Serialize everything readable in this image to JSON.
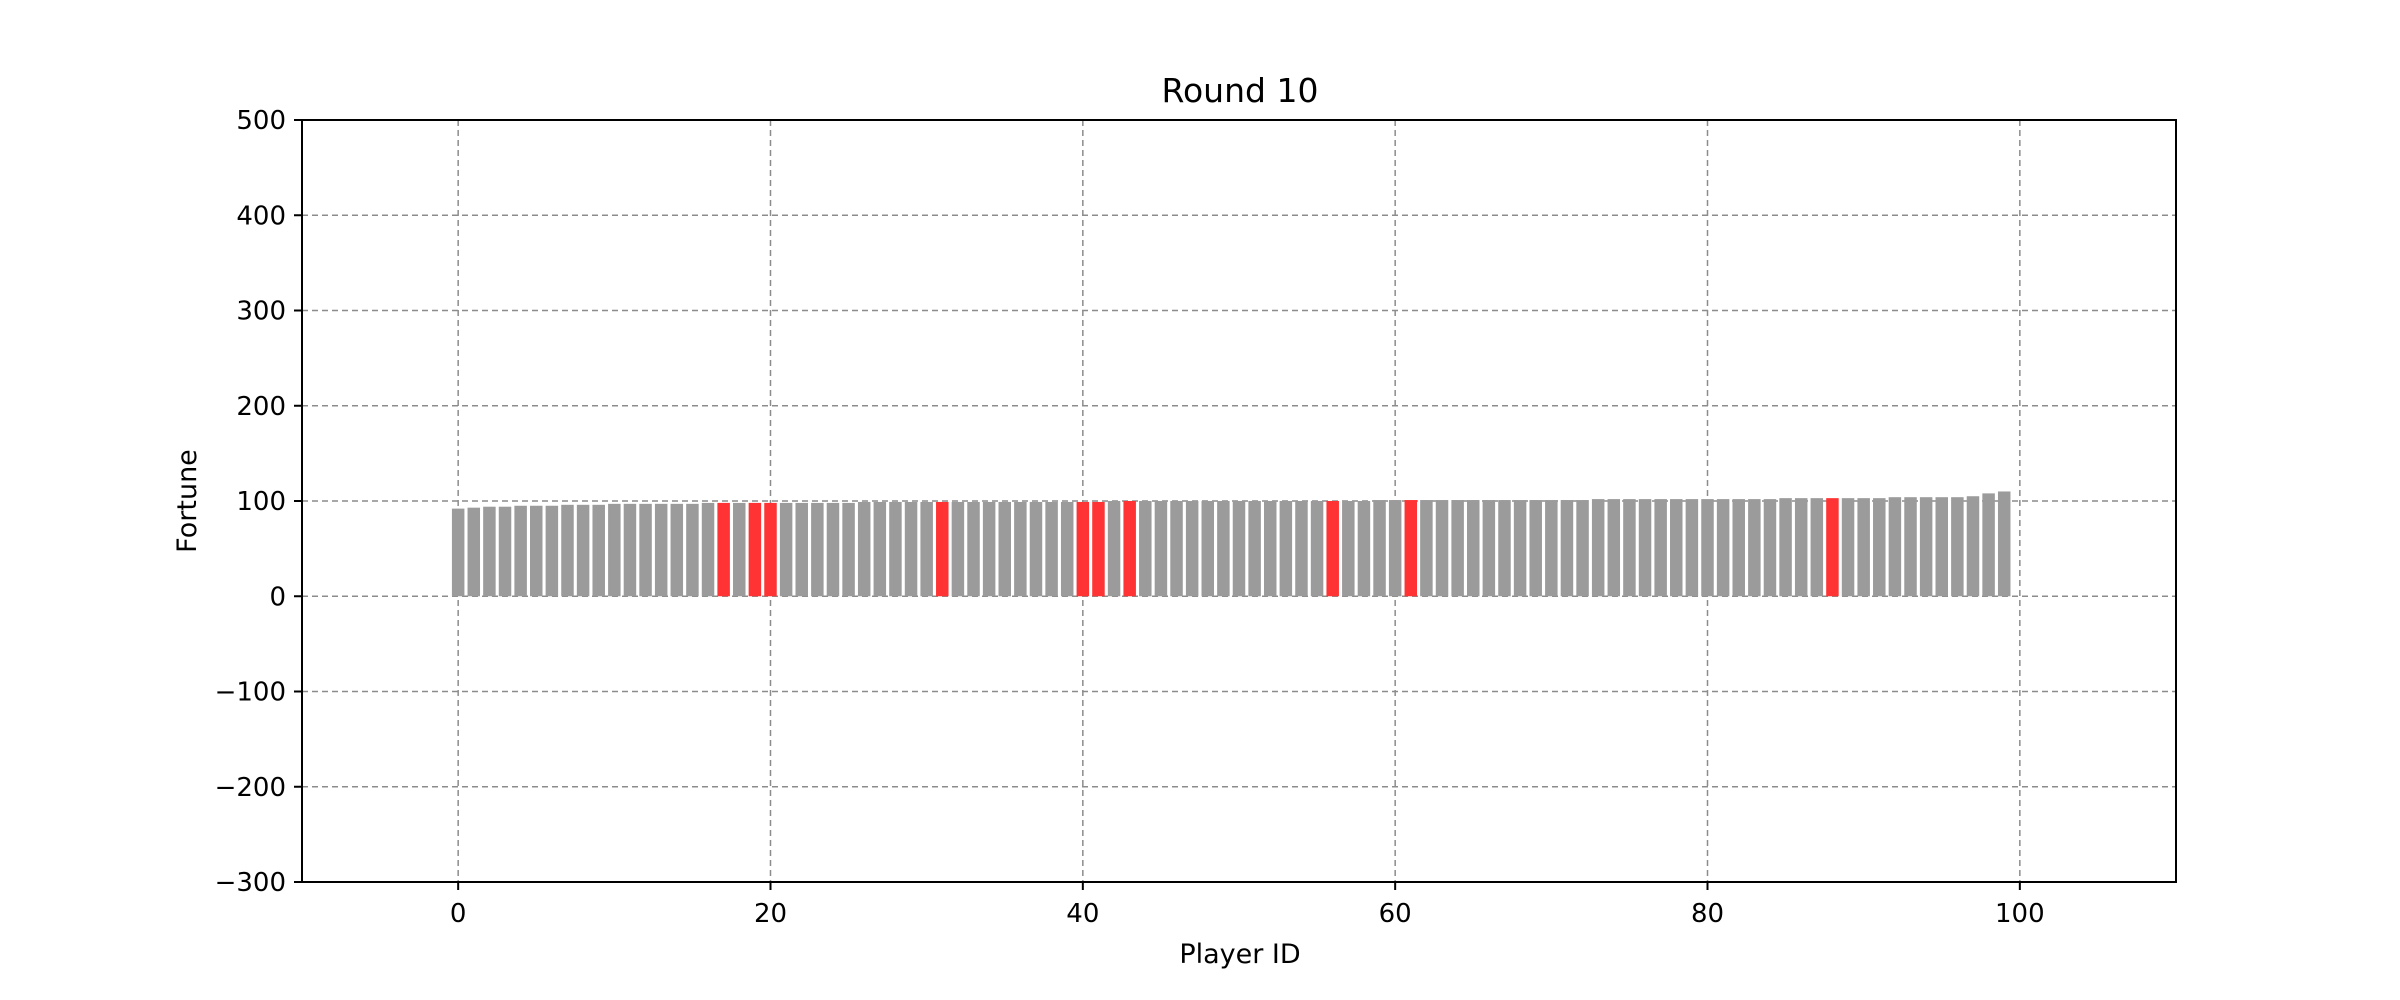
{
  "chart_data": {
    "type": "bar",
    "title": "Round 10",
    "xlabel": "Player ID",
    "ylabel": "Fortune",
    "xlim": [
      -10,
      110
    ],
    "ylim": [
      -300,
      500
    ],
    "xticks": [
      0,
      20,
      40,
      60,
      80,
      100
    ],
    "xtick_labels": [
      "0",
      "20",
      "40",
      "60",
      "80",
      "100"
    ],
    "yticks": [
      -300,
      -200,
      -100,
      0,
      100,
      200,
      300,
      400,
      500
    ],
    "ytick_labels": [
      "−300",
      "−200",
      "−100",
      "0",
      "100",
      "200",
      "300",
      "400",
      "500"
    ],
    "grid": true,
    "colors": {
      "default": "#9b9b9b",
      "highlight": "#ff3333"
    },
    "highlighted": [
      17,
      19,
      20,
      31,
      40,
      41,
      43,
      56,
      61,
      88
    ],
    "x": [
      0,
      1,
      2,
      3,
      4,
      5,
      6,
      7,
      8,
      9,
      10,
      11,
      12,
      13,
      14,
      15,
      16,
      17,
      18,
      19,
      20,
      21,
      22,
      23,
      24,
      25,
      26,
      27,
      28,
      29,
      30,
      31,
      32,
      33,
      34,
      35,
      36,
      37,
      38,
      39,
      40,
      41,
      42,
      43,
      44,
      45,
      46,
      47,
      48,
      49,
      50,
      51,
      52,
      53,
      54,
      55,
      56,
      57,
      58,
      59,
      60,
      61,
      62,
      63,
      64,
      65,
      66,
      67,
      68,
      69,
      70,
      71,
      72,
      73,
      74,
      75,
      76,
      77,
      78,
      79,
      80,
      81,
      82,
      83,
      84,
      85,
      86,
      87,
      88,
      89,
      90,
      91,
      92,
      93,
      94,
      95,
      96,
      97,
      98,
      99
    ],
    "values": [
      92,
      93,
      94,
      94,
      95,
      95,
      95,
      96,
      96,
      96,
      97,
      97,
      97,
      97,
      97,
      97,
      98,
      98,
      98,
      98,
      98,
      98,
      98,
      98,
      98,
      98,
      99,
      99,
      99,
      99,
      99,
      99,
      99,
      99,
      99,
      99,
      99,
      99,
      99,
      99,
      99,
      99,
      100,
      100,
      100,
      100,
      100,
      100,
      100,
      100,
      100,
      100,
      100,
      100,
      100,
      100,
      100,
      100,
      100,
      101,
      101,
      101,
      101,
      101,
      101,
      101,
      101,
      101,
      101,
      101,
      101,
      101,
      101,
      102,
      102,
      102,
      102,
      102,
      102,
      102,
      102,
      102,
      102,
      102,
      102,
      103,
      103,
      103,
      103,
      103,
      103,
      103,
      104,
      104,
      104,
      104,
      104,
      105,
      108,
      110
    ]
  }
}
